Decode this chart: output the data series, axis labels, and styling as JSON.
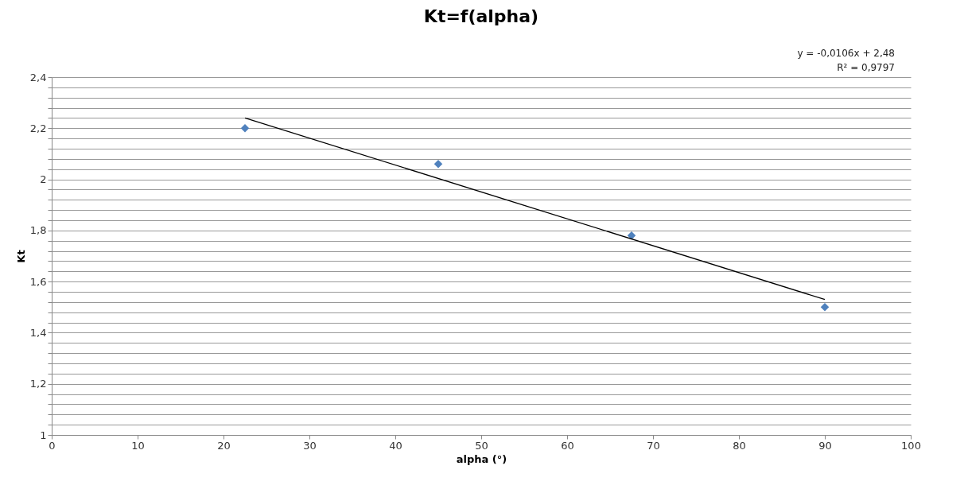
{
  "chart_data": {
    "type": "scatter",
    "title": "Kt=f(alpha)",
    "xlabel": "alpha (°)",
    "ylabel": "Kt",
    "annotations": [
      "y = -0,0106x + 2,48",
      "R² = 0,9797"
    ],
    "series": [
      {
        "color": "#4f81bd",
        "marker": "diamond",
        "x": [
          22.5,
          45,
          67.5,
          90
        ],
        "values": [
          2.2,
          2.06,
          1.78,
          1.5
        ]
      },
      {
        "type": "line",
        "color": "#000000",
        "marker": "none",
        "line_style": "solid",
        "x": [
          22.5,
          90
        ],
        "values": [
          2.24,
          1.53
        ]
      }
    ],
    "xlim": [
      0,
      100
    ],
    "xticks": [
      0,
      10,
      20,
      30,
      40,
      50,
      60,
      70,
      80,
      90,
      100
    ],
    "ylim": [
      1,
      2.4
    ],
    "yticks": [
      {
        "value": 1,
        "label": "1"
      },
      {
        "value": 1.04,
        "label": null
      },
      {
        "value": 1.08,
        "label": null
      },
      {
        "value": 1.12,
        "label": null
      },
      {
        "value": 1.16,
        "label": null
      },
      {
        "value": 1.2,
        "label": "1,2"
      },
      {
        "value": 1.24,
        "label": null
      },
      {
        "value": 1.28,
        "label": null
      },
      {
        "value": 1.32,
        "label": null
      },
      {
        "value": 1.36,
        "label": null
      },
      {
        "value": 1.4,
        "label": "1,4"
      },
      {
        "value": 1.44,
        "label": null
      },
      {
        "value": 1.48,
        "label": null
      },
      {
        "value": 1.52,
        "label": null
      },
      {
        "value": 1.56,
        "label": null
      },
      {
        "value": 1.6,
        "label": "1,6"
      },
      {
        "value": 1.64,
        "label": null
      },
      {
        "value": 1.68,
        "label": null
      },
      {
        "value": 1.72,
        "label": null
      },
      {
        "value": 1.76,
        "label": null
      },
      {
        "value": 1.8,
        "label": "1,8"
      },
      {
        "value": 1.84,
        "label": null
      },
      {
        "value": 1.88,
        "label": null
      },
      {
        "value": 1.92,
        "label": null
      },
      {
        "value": 1.96,
        "label": null
      },
      {
        "value": 2,
        "label": "2"
      },
      {
        "value": 2.04,
        "label": null
      },
      {
        "value": 2.08,
        "label": null
      },
      {
        "value": 2.12,
        "label": null
      },
      {
        "value": 2.16,
        "label": null
      },
      {
        "value": 2.2,
        "label": "2,2"
      },
      {
        "value": 2.24,
        "label": null
      },
      {
        "value": 2.28,
        "label": null
      },
      {
        "value": 2.32,
        "label": null
      },
      {
        "value": 2.36,
        "label": null
      },
      {
        "value": 2.4,
        "label": "2,4"
      }
    ],
    "grid": "y"
  }
}
